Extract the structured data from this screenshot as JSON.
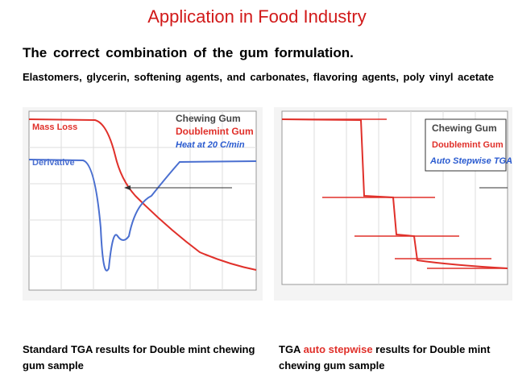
{
  "header": {
    "title": "Application in Food Industry"
  },
  "heading": "The correct combination of the gum formulation.",
  "description": "Elastomers, glycerin, softening agents, and carbonates, flavoring agents, poly vinyl acetate",
  "figures": [
    {
      "labels": [
        "Mass Loss",
        "Derivative",
        "Chewing Gum",
        "Doublemint Gum",
        "Heat at 20 C/min"
      ],
      "caption": "Standard TGA results for Double mint chewing gum sample"
    },
    {
      "labels": [
        "Chewing Gum",
        "Doublemint Gum",
        "Auto Stepwise TGA"
      ],
      "caption": {
        "before": "TGA ",
        "highlight": "auto stepwise",
        "after": " results for Double mint chewing gum sample"
      }
    }
  ]
}
